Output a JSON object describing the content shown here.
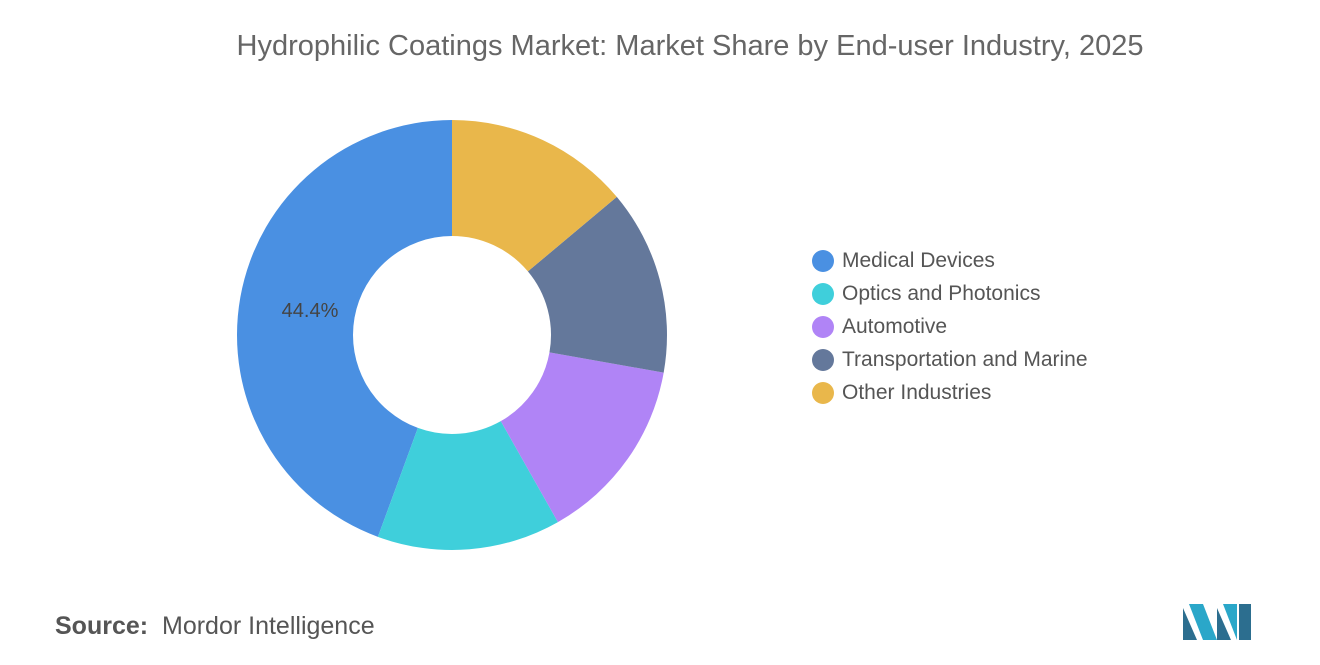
{
  "title": "Hydrophilic Coatings Market: Market Share by End-user Industry, 2025",
  "source": {
    "label": "Source:",
    "value": "Mordor Intelligence"
  },
  "logo_text": "Mordor Intelligence",
  "chart_data": {
    "type": "pie",
    "variant": "donut",
    "title": "Hydrophilic Coatings Market: Market Share by End-user Industry, 2025",
    "direction": "counterclockwise from top",
    "legend_position": "right",
    "unit": "%",
    "categories": [
      "Medical Devices",
      "Optics and Photonics",
      "Automotive",
      "Transportation and Marine",
      "Other Industries"
    ],
    "values": [
      44.4,
      13.8,
      14.0,
      13.9,
      13.9
    ],
    "data_labels": [
      "44.4%",
      "",
      "",
      "",
      ""
    ],
    "colors": [
      "#4a90e2",
      "#3fcfdb",
      "#b084f6",
      "#64789b",
      "#e9b74b"
    ]
  }
}
